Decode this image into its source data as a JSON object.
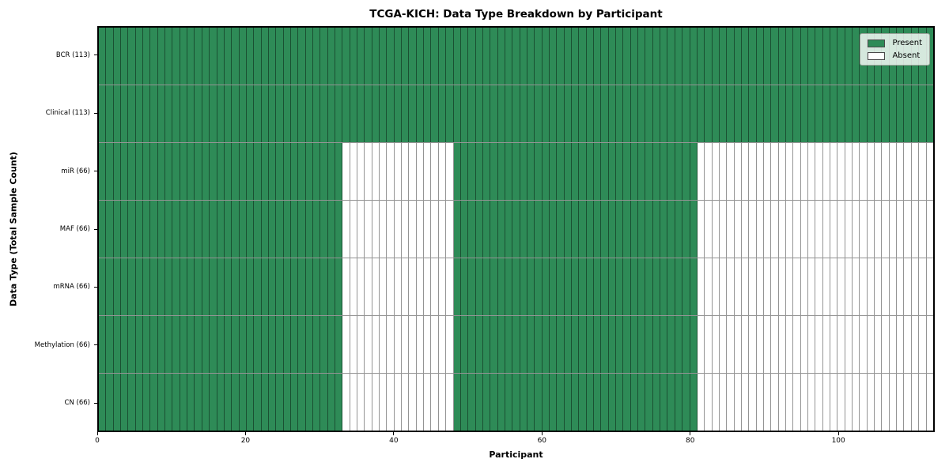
{
  "chart_data": {
    "type": "heatmap",
    "title": "TCGA-KICH: Data Type Breakdown by Participant",
    "xlabel": "Participant",
    "ylabel": "Data Type (Total Sample Count)",
    "x_range": [
      0,
      113
    ],
    "n_participants": 113,
    "x_ticks": [
      0,
      20,
      40,
      60,
      80,
      100
    ],
    "rows": [
      {
        "label": "BCR (113)",
        "total": 113,
        "present_ranges": [
          [
            0,
            113
          ]
        ]
      },
      {
        "label": "Clinical (113)",
        "total": 113,
        "present_ranges": [
          [
            0,
            113
          ]
        ]
      },
      {
        "label": "miR (66)",
        "total": 66,
        "present_ranges": [
          [
            0,
            33
          ],
          [
            48,
            81
          ]
        ]
      },
      {
        "label": "MAF (66)",
        "total": 66,
        "present_ranges": [
          [
            0,
            33
          ],
          [
            48,
            81
          ]
        ]
      },
      {
        "label": "mRNA (66)",
        "total": 66,
        "present_ranges": [
          [
            0,
            33
          ],
          [
            48,
            81
          ]
        ]
      },
      {
        "label": "Methylation (66)",
        "total": 66,
        "present_ranges": [
          [
            0,
            33
          ],
          [
            48,
            81
          ]
        ]
      },
      {
        "label": "CN (66)",
        "total": 66,
        "present_ranges": [
          [
            0,
            33
          ],
          [
            48,
            81
          ]
        ]
      }
    ],
    "legend": {
      "position": "upper right",
      "entries": [
        {
          "label": "Present",
          "color": "#2e8b57"
        },
        {
          "label": "Absent",
          "color": "#ffffff"
        }
      ]
    },
    "colors": {
      "present": "#2e8b57",
      "absent": "#ffffff",
      "grid_line": "rgba(0,0,0,0.42)",
      "frame": "#000000"
    },
    "grid": true
  }
}
